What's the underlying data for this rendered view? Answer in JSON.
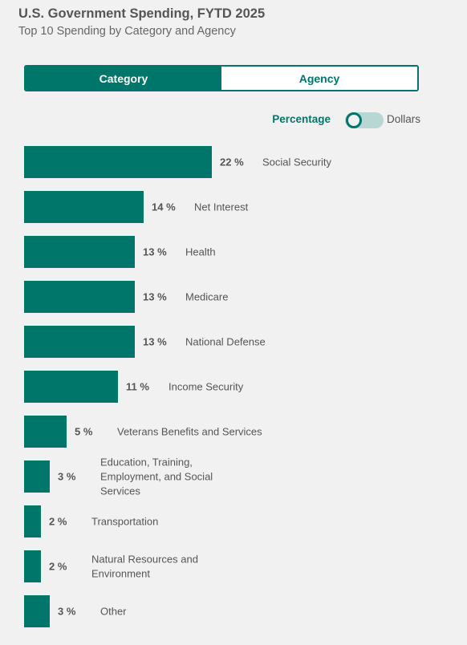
{
  "header": {
    "title": "U.S. Government Spending, FYTD 2025",
    "subtitle": "Top 10 Spending by Category and Agency"
  },
  "tabs": [
    {
      "label": "Category",
      "active": true
    },
    {
      "label": "Agency",
      "active": false
    }
  ],
  "toggle": {
    "left_label": "Percentage",
    "right_label": "Dollars",
    "selected": "Percentage"
  },
  "colors": {
    "accent": "#00756a",
    "toggle_track": "#b8d6d3",
    "bar": "#00756a"
  },
  "chart_data": {
    "type": "bar",
    "orientation": "horizontal",
    "value_suffix": " %",
    "categories": [
      "Social Security",
      "Net Interest",
      "Health",
      "Medicare",
      "National Defense",
      "Income Security",
      "Veterans Benefits and Services",
      "Education, Training, Employment, and Social Services",
      "Transportation",
      "Natural Resources and Environment",
      "Other"
    ],
    "category_lines": [
      [
        "Social Security"
      ],
      [
        "Net Interest"
      ],
      [
        "Health"
      ],
      [
        "Medicare"
      ],
      [
        "National Defense"
      ],
      [
        "Income Security"
      ],
      [
        "Veterans Benefits and Services"
      ],
      [
        "Education, Training,",
        "Employment, and Social",
        "Services"
      ],
      [
        "Transportation"
      ],
      [
        "Natural Resources and",
        "Environment"
      ],
      [
        "Other"
      ]
    ],
    "values": [
      22,
      14,
      13,
      13,
      13,
      11,
      5,
      3,
      2,
      2,
      3
    ],
    "xlim": [
      0,
      22
    ],
    "grid": false,
    "legend": "none"
  }
}
